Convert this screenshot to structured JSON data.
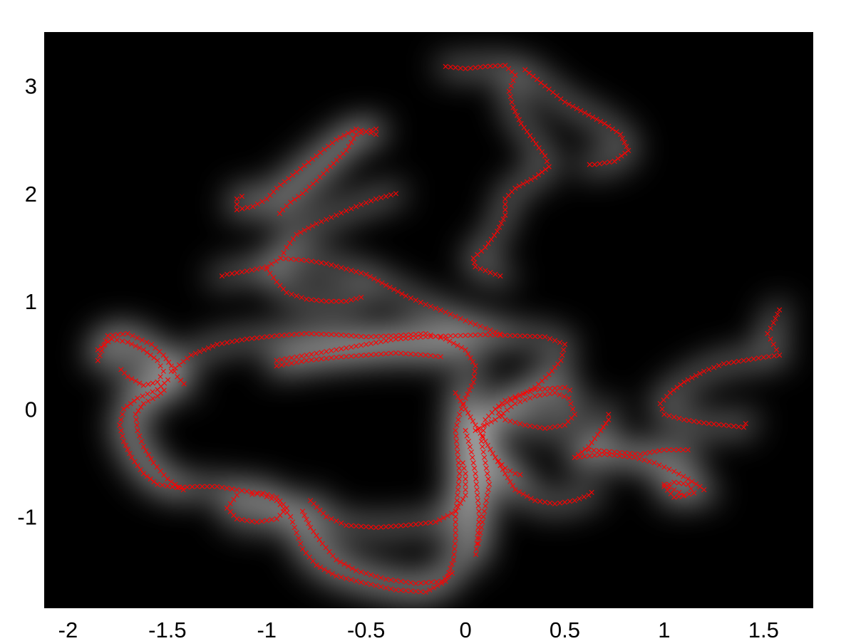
{
  "chart_data": {
    "type": "scatter",
    "title": "",
    "xlabel": "",
    "ylabel": "",
    "xlim": [
      -2.12,
      1.75
    ],
    "ylim": [
      -1.85,
      3.5
    ],
    "x_ticks": [
      -2,
      -1.5,
      -1,
      -0.5,
      0,
      0.5,
      1,
      1.5
    ],
    "x_tick_labels": [
      "-2",
      "-1.5",
      "-1",
      "-0.5",
      "0",
      "0.5",
      "1",
      "1.5"
    ],
    "y_ticks": [
      -1,
      0,
      1,
      2,
      3
    ],
    "y_tick_labels": [
      "-1",
      "0",
      "1",
      "2",
      "3"
    ],
    "grid": false,
    "background": "density heatmap (grayscale)",
    "marker": "x",
    "marker_color": "#ff0000",
    "trajectories": [
      {
        "points": [
          [
            -0.1,
            3.18
          ],
          [
            0,
            3.16
          ],
          [
            0.1,
            3.18
          ],
          [
            0.2,
            3.19
          ],
          [
            0.25,
            3.1
          ],
          [
            0.22,
            2.95
          ],
          [
            0.24,
            2.8
          ],
          [
            0.28,
            2.65
          ],
          [
            0.34,
            2.5
          ],
          [
            0.4,
            2.35
          ],
          [
            0.42,
            2.25
          ],
          [
            0.35,
            2.15
          ],
          [
            0.25,
            2.05
          ],
          [
            0.2,
            1.95
          ],
          [
            0.2,
            1.8
          ],
          [
            0.16,
            1.65
          ],
          [
            0.1,
            1.5
          ],
          [
            0.04,
            1.4
          ],
          [
            0.05,
            1.32
          ],
          [
            0.15,
            1.25
          ],
          [
            0.2,
            1.22
          ]
        ]
      },
      {
        "points": [
          [
            0.3,
            3.15
          ],
          [
            0.4,
            3.0
          ],
          [
            0.5,
            2.85
          ],
          [
            0.6,
            2.75
          ],
          [
            0.7,
            2.65
          ],
          [
            0.78,
            2.55
          ],
          [
            0.82,
            2.4
          ],
          [
            0.75,
            2.3
          ],
          [
            0.65,
            2.27
          ],
          [
            0.6,
            2.27
          ]
        ]
      },
      {
        "points": [
          [
            -0.45,
            2.55
          ],
          [
            -0.55,
            2.6
          ],
          [
            -0.65,
            2.5
          ],
          [
            -0.75,
            2.35
          ],
          [
            -0.85,
            2.2
          ],
          [
            -0.95,
            2.05
          ],
          [
            -1.0,
            1.95
          ],
          [
            -1.07,
            1.88
          ],
          [
            -1.15,
            1.85
          ],
          [
            -1.15,
            1.95
          ],
          [
            -1.1,
            2.0
          ]
        ]
      },
      {
        "points": [
          [
            -0.45,
            2.6
          ],
          [
            -0.55,
            2.55
          ],
          [
            -0.6,
            2.4
          ],
          [
            -0.68,
            2.25
          ],
          [
            -0.75,
            2.12
          ],
          [
            -0.82,
            2.0
          ],
          [
            -0.88,
            1.92
          ],
          [
            -0.92,
            1.85
          ],
          [
            -0.95,
            1.78
          ]
        ]
      },
      {
        "points": [
          [
            -0.35,
            2.0
          ],
          [
            -0.45,
            1.95
          ],
          [
            -0.55,
            1.88
          ],
          [
            -0.65,
            1.8
          ],
          [
            -0.75,
            1.72
          ],
          [
            -0.85,
            1.62
          ],
          [
            -0.9,
            1.5
          ],
          [
            -0.93,
            1.4
          ],
          [
            -1.0,
            1.32
          ],
          [
            -1.1,
            1.28
          ],
          [
            -1.2,
            1.25
          ],
          [
            -1.25,
            1.22
          ]
        ]
      },
      {
        "points": [
          [
            -0.93,
            1.4
          ],
          [
            -0.8,
            1.38
          ],
          [
            -0.7,
            1.35
          ],
          [
            -0.6,
            1.3
          ],
          [
            -0.5,
            1.25
          ],
          [
            -0.4,
            1.15
          ],
          [
            -0.3,
            1.05
          ],
          [
            -0.2,
            0.97
          ],
          [
            -0.1,
            0.9
          ],
          [
            0.0,
            0.82
          ],
          [
            0.1,
            0.75
          ],
          [
            0.2,
            0.68
          ]
        ]
      },
      {
        "points": [
          [
            -1.0,
            1.3
          ],
          [
            -0.95,
            1.18
          ],
          [
            -0.9,
            1.08
          ],
          [
            -0.8,
            1.02
          ],
          [
            -0.7,
            1.0
          ],
          [
            -0.6,
            1.0
          ],
          [
            -0.5,
            1.05
          ]
        ]
      },
      {
        "points": [
          [
            -0.95,
            0.45
          ],
          [
            -0.8,
            0.5
          ],
          [
            -0.65,
            0.55
          ],
          [
            -0.5,
            0.6
          ],
          [
            -0.35,
            0.65
          ],
          [
            -0.2,
            0.67
          ],
          [
            -0.05,
            0.68
          ],
          [
            0.1,
            0.69
          ],
          [
            0.25,
            0.68
          ],
          [
            0.4,
            0.67
          ],
          [
            0.5,
            0.6
          ],
          [
            0.48,
            0.45
          ],
          [
            0.42,
            0.32
          ],
          [
            0.35,
            0.2
          ],
          [
            0.25,
            0.1
          ],
          [
            0.15,
            0.0
          ],
          [
            0.1,
            -0.1
          ]
        ]
      },
      {
        "points": [
          [
            -0.95,
            0.4
          ],
          [
            -0.8,
            0.45
          ],
          [
            -0.65,
            0.48
          ],
          [
            -0.5,
            0.5
          ],
          [
            -0.35,
            0.52
          ],
          [
            -0.2,
            0.5
          ],
          [
            -0.1,
            0.48
          ]
        ]
      },
      {
        "points": [
          [
            -1.85,
            0.55
          ],
          [
            -1.78,
            0.65
          ],
          [
            -1.7,
            0.62
          ],
          [
            -1.62,
            0.55
          ],
          [
            -1.55,
            0.45
          ],
          [
            -1.52,
            0.35
          ],
          [
            -1.55,
            0.25
          ],
          [
            -1.62,
            0.22
          ],
          [
            -1.7,
            0.3
          ],
          [
            -1.75,
            0.4
          ]
        ]
      },
      {
        "points": [
          [
            -1.85,
            0.45
          ],
          [
            -1.8,
            0.68
          ],
          [
            -1.7,
            0.7
          ],
          [
            -1.58,
            0.6
          ],
          [
            -1.52,
            0.5
          ],
          [
            -1.48,
            0.4
          ],
          [
            -1.45,
            0.3
          ],
          [
            -1.4,
            0.2
          ]
        ]
      },
      {
        "points": [
          [
            -1.48,
            0.35
          ],
          [
            -1.38,
            0.5
          ],
          [
            -1.25,
            0.6
          ],
          [
            -1.1,
            0.65
          ],
          [
            -0.95,
            0.68
          ],
          [
            -0.8,
            0.7
          ],
          [
            -0.65,
            0.69
          ],
          [
            -0.5,
            0.67
          ],
          [
            -0.35,
            0.68
          ],
          [
            -0.2,
            0.7
          ],
          [
            -0.1,
            0.65
          ],
          [
            0.0,
            0.55
          ],
          [
            0.05,
            0.4
          ],
          [
            0.04,
            0.25
          ],
          [
            0.0,
            0.1
          ],
          [
            -0.03,
            -0.05
          ],
          [
            -0.05,
            -0.2
          ],
          [
            -0.04,
            -0.4
          ],
          [
            -0.03,
            -0.6
          ],
          [
            -0.04,
            -0.8
          ],
          [
            -0.05,
            -1.0
          ],
          [
            -0.05,
            -1.2
          ],
          [
            -0.06,
            -1.4
          ],
          [
            -0.1,
            -1.6
          ],
          [
            -0.2,
            -1.7
          ],
          [
            -0.35,
            -1.68
          ],
          [
            -0.5,
            -1.62
          ],
          [
            -0.65,
            -1.55
          ],
          [
            -0.75,
            -1.45
          ],
          [
            -0.82,
            -1.3
          ],
          [
            -0.85,
            -1.15
          ],
          [
            -0.88,
            -1.0
          ],
          [
            -0.95,
            -0.85
          ],
          [
            -1.05,
            -0.78
          ],
          [
            -1.15,
            -0.75
          ],
          [
            -1.25,
            -0.72
          ],
          [
            -1.35,
            -0.72
          ],
          [
            -1.45,
            -0.73
          ],
          [
            -1.55,
            -0.7
          ],
          [
            -1.62,
            -0.6
          ],
          [
            -1.68,
            -0.45
          ],
          [
            -1.72,
            -0.3
          ],
          [
            -1.74,
            -0.15
          ],
          [
            -1.72,
            0.0
          ],
          [
            -1.65,
            0.1
          ],
          [
            -1.55,
            0.18
          ],
          [
            -1.48,
            0.3
          ]
        ]
      },
      {
        "points": [
          [
            -1.42,
            -0.75
          ],
          [
            -1.5,
            -0.65
          ],
          [
            -1.57,
            -0.5
          ],
          [
            -1.62,
            -0.35
          ],
          [
            -1.65,
            -0.2
          ],
          [
            -1.66,
            -0.05
          ],
          [
            -1.62,
            0.05
          ],
          [
            -1.55,
            0.12
          ],
          [
            -1.5,
            0.2
          ]
        ]
      },
      {
        "points": [
          [
            -1.15,
            -0.8
          ],
          [
            -1.2,
            -0.92
          ],
          [
            -1.15,
            -1.02
          ],
          [
            -1.05,
            -1.05
          ],
          [
            -0.95,
            -1.02
          ],
          [
            -0.9,
            -0.92
          ],
          [
            -0.95,
            -0.82
          ],
          [
            -1.02,
            -0.78
          ],
          [
            -1.1,
            -0.8
          ]
        ]
      },
      {
        "points": [
          [
            -0.78,
            -0.85
          ],
          [
            -0.7,
            -1.0
          ],
          [
            -0.6,
            -1.08
          ],
          [
            -0.45,
            -1.1
          ],
          [
            -0.3,
            -1.08
          ],
          [
            -0.15,
            -1.05
          ],
          [
            -0.05,
            -0.95
          ],
          [
            0.0,
            -0.8
          ],
          [
            0.0,
            -0.6
          ],
          [
            -0.02,
            -0.45
          ]
        ]
      },
      {
        "points": [
          [
            -0.82,
            -0.95
          ],
          [
            -0.78,
            -1.1
          ],
          [
            -0.72,
            -1.25
          ],
          [
            -0.65,
            -1.4
          ],
          [
            -0.55,
            -1.5
          ],
          [
            -0.4,
            -1.58
          ],
          [
            -0.25,
            -1.62
          ],
          [
            -0.12,
            -1.6
          ],
          [
            -0.05,
            -1.5
          ]
        ]
      },
      {
        "points": [
          [
            -0.05,
            0.15
          ],
          [
            0.0,
            0.0
          ],
          [
            0.05,
            -0.15
          ],
          [
            0.1,
            -0.3
          ],
          [
            0.15,
            -0.45
          ],
          [
            0.2,
            -0.55
          ],
          [
            0.25,
            -0.6
          ],
          [
            0.3,
            -0.62
          ]
        ]
      },
      {
        "points": [
          [
            0.0,
            -0.2
          ],
          [
            0.03,
            -0.4
          ],
          [
            0.05,
            -0.6
          ],
          [
            0.06,
            -0.8
          ],
          [
            0.07,
            -1.0
          ],
          [
            0.06,
            -1.2
          ],
          [
            0.05,
            -1.4
          ]
        ]
      },
      {
        "points": [
          [
            0.1,
            -0.1
          ],
          [
            0.08,
            -0.3
          ],
          [
            0.1,
            -0.5
          ],
          [
            0.12,
            -0.7
          ],
          [
            0.1,
            -0.9
          ],
          [
            0.08,
            -1.1
          ],
          [
            0.06,
            -1.3
          ]
        ]
      },
      {
        "points": [
          [
            0.05,
            -0.2
          ],
          [
            0.15,
            -0.1
          ],
          [
            0.25,
            0.05
          ],
          [
            0.35,
            0.12
          ],
          [
            0.45,
            0.15
          ],
          [
            0.52,
            0.1
          ],
          [
            0.55,
            -0.05
          ],
          [
            0.5,
            -0.15
          ],
          [
            0.4,
            -0.18
          ],
          [
            0.3,
            -0.15
          ],
          [
            0.2,
            -0.1
          ],
          [
            0.15,
            0.0
          ],
          [
            0.2,
            0.08
          ],
          [
            0.35,
            0.18
          ],
          [
            0.5,
            0.2
          ],
          [
            0.55,
            0.15
          ]
        ]
      },
      {
        "points": [
          [
            0.15,
            -0.45
          ],
          [
            0.2,
            -0.6
          ],
          [
            0.25,
            -0.75
          ],
          [
            0.35,
            -0.85
          ],
          [
            0.45,
            -0.88
          ],
          [
            0.55,
            -0.85
          ],
          [
            0.62,
            -0.8
          ],
          [
            0.65,
            -0.75
          ]
        ]
      },
      {
        "points": [
          [
            0.55,
            -0.45
          ],
          [
            0.62,
            -0.35
          ],
          [
            0.68,
            -0.2
          ],
          [
            0.72,
            -0.1
          ],
          [
            0.72,
            0.0
          ]
        ]
      },
      {
        "points": [
          [
            0.55,
            -0.45
          ],
          [
            0.7,
            -0.42
          ],
          [
            0.85,
            -0.45
          ],
          [
            0.95,
            -0.5
          ],
          [
            1.05,
            -0.58
          ],
          [
            1.12,
            -0.65
          ],
          [
            1.18,
            -0.72
          ],
          [
            1.22,
            -0.78
          ]
        ]
      },
      {
        "points": [
          [
            0.62,
            -0.38
          ],
          [
            0.75,
            -0.4
          ],
          [
            0.88,
            -0.42
          ],
          [
            1.0,
            -0.38
          ],
          [
            1.12,
            -0.38
          ],
          [
            1.15,
            -0.42
          ]
        ]
      },
      {
        "points": [
          [
            1.0,
            -0.7
          ],
          [
            1.05,
            -0.75
          ],
          [
            1.1,
            -0.8
          ],
          [
            1.15,
            -0.78
          ],
          [
            1.12,
            -0.7
          ],
          [
            1.05,
            -0.68
          ],
          [
            1.0,
            -0.72
          ],
          [
            1.05,
            -0.82
          ],
          [
            1.12,
            -0.8
          ]
        ]
      },
      {
        "points": [
          [
            1.58,
            0.92
          ],
          [
            1.55,
            0.8
          ],
          [
            1.52,
            0.7
          ],
          [
            1.55,
            0.6
          ],
          [
            1.58,
            0.5
          ],
          [
            1.5,
            0.48
          ],
          [
            1.4,
            0.45
          ],
          [
            1.3,
            0.42
          ],
          [
            1.2,
            0.35
          ],
          [
            1.1,
            0.25
          ],
          [
            1.03,
            0.15
          ],
          [
            0.98,
            0.05
          ],
          [
            1.0,
            -0.05
          ],
          [
            1.1,
            -0.1
          ],
          [
            1.2,
            -0.13
          ],
          [
            1.3,
            -0.15
          ],
          [
            1.4,
            -0.17
          ],
          [
            1.42,
            -0.1
          ]
        ]
      }
    ]
  }
}
